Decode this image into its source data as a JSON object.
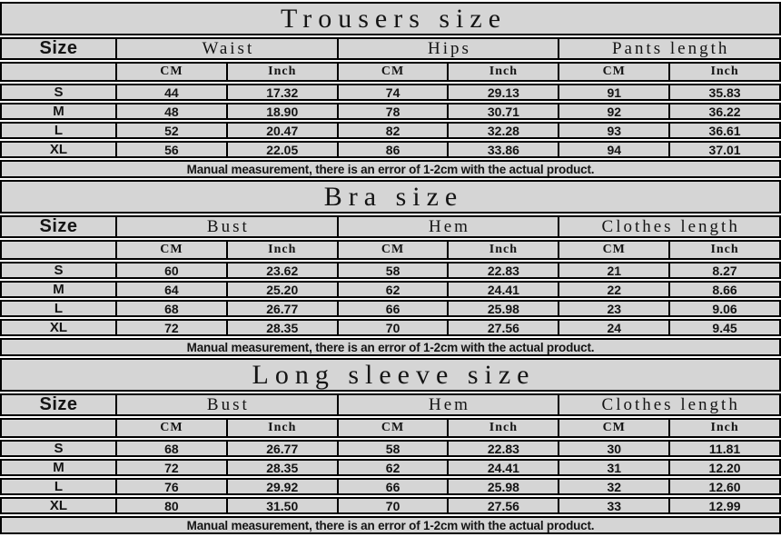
{
  "page": {
    "background": "#ffffff",
    "cell_background": "#d5d5d5",
    "border_color": "#000000",
    "text_color": "#141414"
  },
  "shared": {
    "size_column_header": "Size",
    "unit_cm": "CM",
    "unit_inch": "Inch",
    "note": "Manual measurement, there is an error of 1-2cm with the actual product."
  },
  "tables": [
    {
      "title": "Trousers size",
      "measurements": [
        "Waist",
        "Hips",
        "Pants length"
      ],
      "rows": [
        {
          "size": "S",
          "values": [
            "44",
            "17.32",
            "74",
            "29.13",
            "91",
            "35.83"
          ]
        },
        {
          "size": "M",
          "values": [
            "48",
            "18.90",
            "78",
            "30.71",
            "92",
            "36.22"
          ]
        },
        {
          "size": "L",
          "values": [
            "52",
            "20.47",
            "82",
            "32.28",
            "93",
            "36.61"
          ]
        },
        {
          "size": "XL",
          "values": [
            "56",
            "22.05",
            "86",
            "33.86",
            "94",
            "37.01"
          ]
        }
      ]
    },
    {
      "title": "Bra size",
      "measurements": [
        "Bust",
        "Hem",
        "Clothes length"
      ],
      "rows": [
        {
          "size": "S",
          "values": [
            "60",
            "23.62",
            "58",
            "22.83",
            "21",
            "8.27"
          ]
        },
        {
          "size": "M",
          "values": [
            "64",
            "25.20",
            "62",
            "24.41",
            "22",
            "8.66"
          ]
        },
        {
          "size": "L",
          "values": [
            "68",
            "26.77",
            "66",
            "25.98",
            "23",
            "9.06"
          ]
        },
        {
          "size": "XL",
          "values": [
            "72",
            "28.35",
            "70",
            "27.56",
            "24",
            "9.45"
          ]
        }
      ]
    },
    {
      "title": "Long sleeve size",
      "measurements": [
        "Bust",
        "Hem",
        "Clothes length"
      ],
      "rows": [
        {
          "size": "S",
          "values": [
            "68",
            "26.77",
            "58",
            "22.83",
            "30",
            "11.81"
          ]
        },
        {
          "size": "M",
          "values": [
            "72",
            "28.35",
            "62",
            "24.41",
            "31",
            "12.20"
          ]
        },
        {
          "size": "L",
          "values": [
            "76",
            "29.92",
            "66",
            "25.98",
            "32",
            "12.60"
          ]
        },
        {
          "size": "XL",
          "values": [
            "80",
            "31.50",
            "70",
            "27.56",
            "33",
            "12.99"
          ]
        }
      ]
    }
  ]
}
